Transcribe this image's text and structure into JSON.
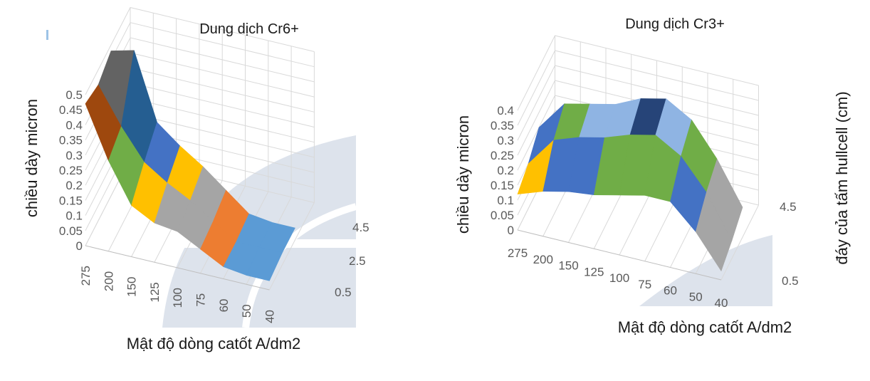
{
  "chart_data": [
    {
      "type": "surface",
      "title": "Dung dịch Cr6+",
      "xlabel": "Mật độ dòng catốt A/dm2",
      "ylabel": "chiều dày micron",
      "zlabel": "",
      "x_categories": [
        "275",
        "200",
        "150",
        "125",
        "100",
        "75",
        "60",
        "50",
        "40"
      ],
      "depth_categories": [
        "0.5",
        "2.5",
        "4.5"
      ],
      "z_ticks": [
        "0",
        "0.05",
        "0.1",
        "0.15",
        "0.2",
        "0.25",
        "0.3",
        "0.35",
        "0.4",
        "0.45",
        "0.5"
      ],
      "zlim": [
        0,
        0.5
      ],
      "series": [
        {
          "depth": "0.5",
          "values": [
            0.47,
            0.3,
            0.17,
            0.13,
            0.12,
            0.08,
            0.04,
            0.03,
            0.03
          ]
        },
        {
          "depth": "2.5",
          "values": [
            0.45,
            0.33,
            0.23,
            0.18,
            0.14,
            0.09,
            0.04,
            0.04,
            0.04
          ]
        },
        {
          "depth": "4.5",
          "values": [
            0.48,
            0.5,
            0.28,
            0.22,
            0.17,
            0.11,
            0.05,
            0.04,
            0.04
          ]
        }
      ],
      "band_colors": [
        "#5B9BD5",
        "#ED7D31",
        "#A5A5A5",
        "#FFC000",
        "#4472C4",
        "#70AD47",
        "#255E91",
        "#9E480E",
        "#636363",
        "#997300",
        "#997300"
      ],
      "grid": true
    },
    {
      "type": "surface",
      "title": "Dung dịch Cr3+",
      "xlabel": "Mật độ dòng catốt A/dm2",
      "ylabel": "chiều dày micron",
      "zlabel": "đáy của tấm hullcell (cm)",
      "x_categories": [
        "275",
        "200",
        "150",
        "125",
        "100",
        "75",
        "60",
        "50",
        "40"
      ],
      "depth_categories": [
        "0.5",
        "4.5"
      ],
      "z_ticks": [
        "0",
        "0.05",
        "0.1",
        "0.15",
        "0.2",
        "0.25",
        "0.3",
        "0.35",
        "0.4"
      ],
      "zlim": [
        0,
        0.4
      ],
      "series": [
        {
          "depth": "0.5",
          "values": [
            0.12,
            0.15,
            0.17,
            0.18,
            0.2,
            0.22,
            0.22,
            0.14,
            0.03
          ]
        },
        {
          "depth": "2.5",
          "values": [
            0.15,
            0.25,
            0.28,
            0.3,
            0.33,
            0.35,
            0.3,
            0.2,
            0.06
          ]
        },
        {
          "depth": "4.5",
          "values": [
            0.2,
            0.3,
            0.32,
            0.34,
            0.38,
            0.4,
            0.35,
            0.24,
            0.1
          ]
        }
      ],
      "band_colors": [
        "#5B9BD5",
        "#ED7D31",
        "#A5A5A5",
        "#FFC000",
        "#4472C4",
        "#70AD47",
        "#8FB4E3",
        "#264478",
        "#43682B"
      ],
      "grid": true
    }
  ]
}
